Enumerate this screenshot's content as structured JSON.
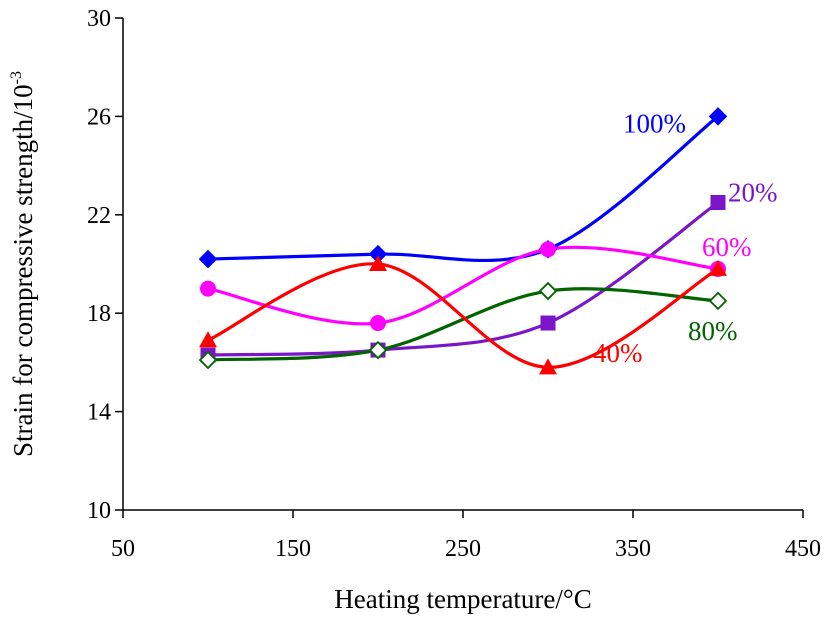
{
  "chart_data": {
    "type": "line",
    "xlabel": "Heating temperature/°C",
    "ylabel_main": "Strain for compressive strength/10",
    "ylabel_sup": "-3",
    "xlim": [
      50,
      450
    ],
    "ylim": [
      10,
      30
    ],
    "xticks": [
      50,
      150,
      250,
      350,
      450
    ],
    "yticks": [
      10,
      14,
      18,
      22,
      26,
      30
    ],
    "grid": false,
    "x": [
      100,
      200,
      300,
      400
    ],
    "series": [
      {
        "name": "100%",
        "color": "#0000ff",
        "marker": "diamond-filled",
        "values": [
          20.2,
          20.4,
          20.6,
          26.0
        ]
      },
      {
        "name": "20%",
        "color": "#7b16c8",
        "marker": "square-filled",
        "values": [
          16.3,
          16.5,
          17.6,
          22.5
        ]
      },
      {
        "name": "60%",
        "color": "#ff00ff",
        "marker": "circle-filled",
        "values": [
          19.0,
          17.6,
          20.6,
          19.8
        ]
      },
      {
        "name": "80%",
        "color": "#006400",
        "marker": "diamond-open",
        "values": [
          16.1,
          16.5,
          18.9,
          18.5
        ]
      },
      {
        "name": "40%",
        "color": "#ff0000",
        "marker": "triangle-filled",
        "values": [
          16.9,
          20.0,
          15.8,
          19.8
        ]
      }
    ]
  }
}
